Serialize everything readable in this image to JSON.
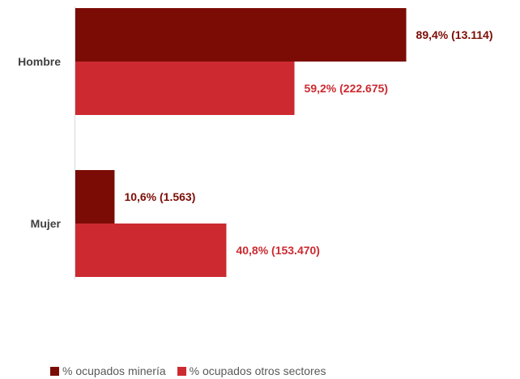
{
  "chart_data": {
    "type": "bar",
    "orientation": "horizontal",
    "categories": [
      "Hombre",
      "Mujer"
    ],
    "series": [
      {
        "name": "% ocupados minería",
        "color": "#7b0c05",
        "values": [
          89.4,
          10.6
        ],
        "labels": [
          "89,4% (13.114)",
          "10,6% (1.563)"
        ]
      },
      {
        "name": "% ocupados otros sectores",
        "color": "#cc2a30",
        "values": [
          59.2,
          40.8
        ],
        "labels": [
          "59,2% (222.675)",
          "40,8% (153.470)"
        ]
      }
    ],
    "xlim": [
      0,
      100
    ],
    "grid": false,
    "legend_position": "bottom-left"
  }
}
